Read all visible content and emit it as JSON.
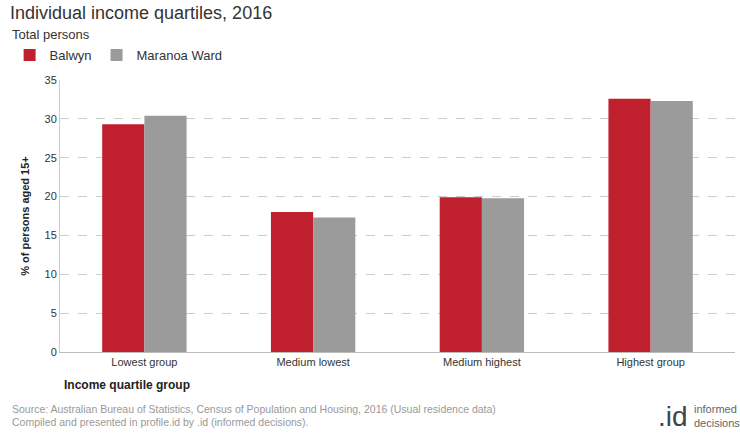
{
  "chart_data": {
    "type": "bar",
    "title": "Individual income quartiles, 2016",
    "subtitle": "Total persons",
    "x_label": "Income quartile group",
    "y_label": "% of persons aged 15+",
    "categories": [
      "Lowest group",
      "Medium lowest",
      "Medium highest",
      "Highest group"
    ],
    "series": [
      {
        "name": "Balwyn",
        "color": "#c01f2d",
        "values": [
          29.3,
          18.0,
          19.9,
          32.6
        ]
      },
      {
        "name": "Maranoa Ward",
        "color": "#9b9b9b",
        "values": [
          30.4,
          17.3,
          19.8,
          32.3
        ]
      }
    ],
    "ylim": [
      0,
      35
    ],
    "yticks": [
      0,
      5,
      10,
      15,
      20,
      25,
      30,
      35
    ],
    "grid": true,
    "legend": "top-left",
    "source": [
      "Source: Australian Bureau of Statistics, Census of Population and Housing, 2016 (Usual residence data)",
      "Compiled and presented in profile.id by .id (informed decisions)."
    ],
    "logo": {
      "mark": ".id",
      "text": [
        "informed",
        "decisions"
      ]
    }
  }
}
